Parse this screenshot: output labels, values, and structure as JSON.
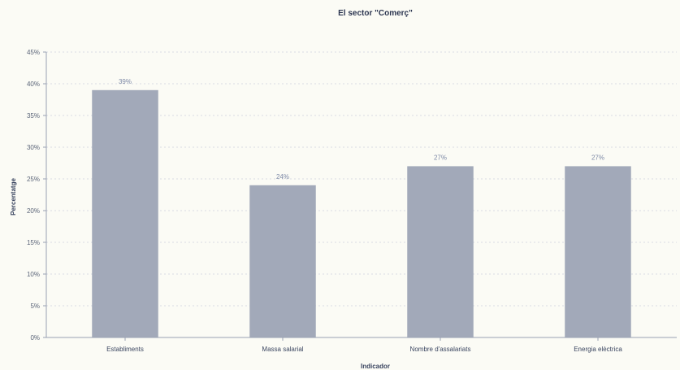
{
  "chart_data": {
    "type": "bar",
    "title": "El sector \"Comerç\"",
    "xlabel": "Indicador",
    "ylabel": "Percentatge",
    "categories": [
      "Establiments",
      "Massa salarial",
      "Nombre d'assalariats",
      "Energia elèctrica"
    ],
    "values": [
      39,
      24,
      27,
      27
    ],
    "data_labels": [
      "39%",
      "24%",
      "27%",
      "27%"
    ],
    "ylim": [
      0,
      45
    ],
    "yticks": [
      0,
      5,
      10,
      15,
      20,
      25,
      30,
      35,
      40,
      45
    ],
    "ytick_labels": [
      "0%",
      "5%",
      "10%",
      "15%",
      "20%",
      "25%",
      "30%",
      "35%",
      "40%",
      "45%"
    ],
    "grid": true,
    "bar_color": "#a2a9b9"
  }
}
